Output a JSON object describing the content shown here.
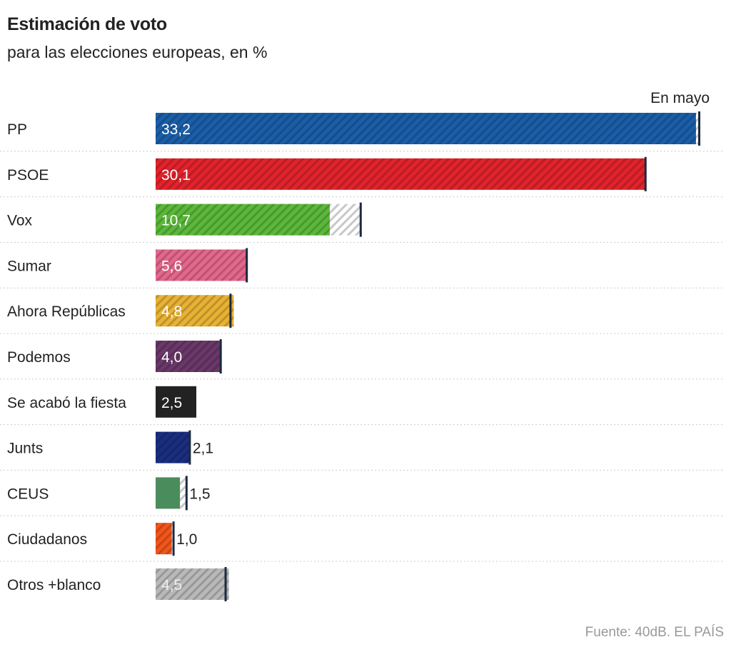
{
  "chart_data": {
    "type": "bar",
    "orientation": "horizontal",
    "title": "Estimación de voto",
    "subtitle": "para las elecciones europeas, en %",
    "marker_label": "En mayo",
    "source": "Fuente: 40dB. EL PAÍS",
    "decimal_separator": ",",
    "categories": [
      "PP",
      "PSOE",
      "Vox",
      "Sumar",
      "Ahora Repúblicas",
      "Podemos",
      "Se acabó la fiesta",
      "Junts",
      "CEUS",
      "Ciudadanos",
      "Otros +blanco"
    ],
    "series": [
      {
        "values": [
          33.2,
          30.1,
          10.7,
          5.6,
          4.8,
          4.0,
          2.5,
          2.1,
          1.5,
          1.0,
          4.5
        ]
      },
      {
        "name": "En mayo",
        "values": [
          33.4,
          30.1,
          12.6,
          5.6,
          4.6,
          4.0,
          null,
          2.1,
          1.9,
          1.1,
          4.3
        ]
      }
    ],
    "colors": [
      "#1b5ea8",
      "#e2232c",
      "#5bb83a",
      "#e4678c",
      "#e8b234",
      "#6a3869",
      "#222222",
      "#1a2e80",
      "#4b8c5c",
      "#f2551a",
      "#b9b9b9"
    ],
    "hatched": [
      true,
      true,
      true,
      true,
      true,
      true,
      false,
      true,
      false,
      true,
      true
    ],
    "label_inside": [
      true,
      true,
      true,
      true,
      true,
      true,
      true,
      false,
      false,
      false,
      true
    ],
    "grid": false
  }
}
